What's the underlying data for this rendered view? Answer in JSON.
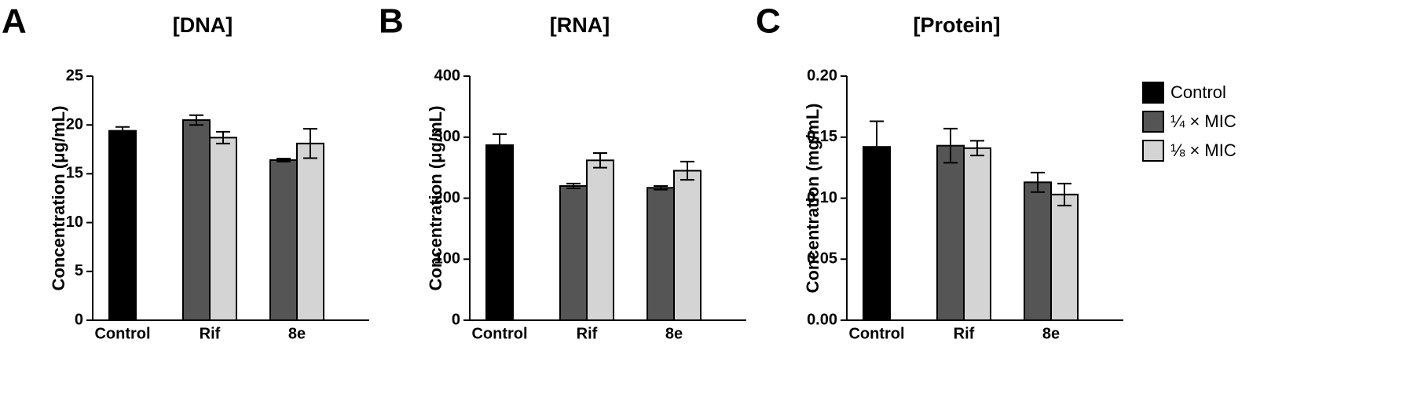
{
  "chart_data": [
    {
      "type": "bar",
      "panel_label": "A",
      "title": "[DNA]",
      "y_label": "Concentration (μg/mL)",
      "categories": [
        "Control",
        "Rif",
        "8e"
      ],
      "ylim": [
        0,
        25
      ],
      "yticks": [
        0,
        5,
        10,
        15,
        20,
        25
      ],
      "series": [
        {
          "color": "#000000",
          "values": [
            19.4,
            null,
            null
          ],
          "errors": [
            0.4,
            null,
            null
          ]
        },
        {
          "color": "#555555",
          "values": [
            null,
            20.5,
            16.4
          ],
          "errors": [
            null,
            0.5,
            0.15
          ]
        },
        {
          "color": "#d4d4d4",
          "values": [
            null,
            18.7,
            18.1
          ],
          "errors": [
            null,
            0.6,
            1.5
          ]
        }
      ]
    },
    {
      "type": "bar",
      "panel_label": "B",
      "title": "[RNA]",
      "y_label": "Concentration (μg/mL)",
      "categories": [
        "Control",
        "Rif",
        "8e"
      ],
      "ylim": [
        0,
        400
      ],
      "yticks": [
        0,
        100,
        200,
        300,
        400
      ],
      "series": [
        {
          "color": "#000000",
          "values": [
            287,
            null,
            null
          ],
          "errors": [
            18,
            null,
            null
          ]
        },
        {
          "color": "#555555",
          "values": [
            null,
            220,
            217
          ],
          "errors": [
            null,
            4,
            3
          ]
        },
        {
          "color": "#d4d4d4",
          "values": [
            null,
            262,
            245
          ],
          "errors": [
            null,
            12,
            15
          ]
        }
      ]
    },
    {
      "type": "bar",
      "panel_label": "C",
      "title": "[Protein]",
      "y_label": "Concentration (mg/mL)",
      "categories": [
        "Control",
        "Rif",
        "8e"
      ],
      "ylim": [
        0,
        0.2
      ],
      "yticks": [
        {
          "value": 0,
          "label": "0.00"
        },
        {
          "value": 0.05,
          "label": "0.05"
        },
        {
          "value": 0.1,
          "label": "0.10"
        },
        {
          "value": 0.15,
          "label": "0.15"
        },
        {
          "value": 0.2,
          "label": "0.20"
        }
      ],
      "series": [
        {
          "name": "Control",
          "color": "#000000",
          "values": [
            0.142,
            null,
            null
          ],
          "errors": [
            0.021,
            null,
            null
          ]
        },
        {
          "name": "¼ × MIC",
          "color": "#555555",
          "values": [
            null,
            0.143,
            0.113
          ],
          "errors": [
            null,
            0.014,
            0.008
          ]
        },
        {
          "name": "⅛ × MIC",
          "color": "#d4d4d4",
          "values": [
            null,
            0.141,
            0.103
          ],
          "errors": [
            null,
            0.006,
            0.009
          ]
        }
      ]
    }
  ]
}
